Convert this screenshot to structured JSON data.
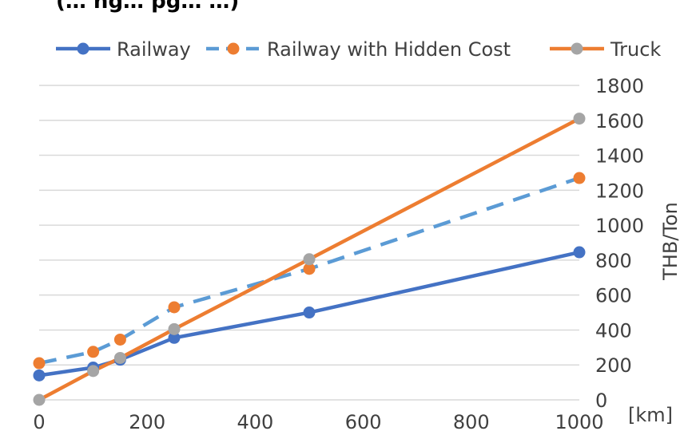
{
  "chart_data": {
    "type": "line",
    "title": "(… ng… pg… …)",
    "xlabel": "[km]",
    "ylabel": "THB/Ton",
    "xlim": [
      0,
      1000
    ],
    "ylim": [
      0,
      1800
    ],
    "xticks": [
      0,
      200,
      400,
      600,
      800,
      1000
    ],
    "yticks": [
      0,
      200,
      400,
      600,
      800,
      1000,
      1200,
      1400,
      1600,
      1800
    ],
    "grid": true,
    "legend_position": "top",
    "series": [
      {
        "name": "Railway",
        "color": "#4472c4",
        "line_style": "solid",
        "marker_color": "#4472c4",
        "x": [
          0,
          100,
          150,
          250,
          500,
          1000
        ],
        "y": [
          140,
          185,
          230,
          355,
          500,
          845
        ]
      },
      {
        "name": "Railway with Hidden Cost",
        "color": "#5b9bd5",
        "line_style": "dashed",
        "marker_color": "#ed7d31",
        "x": [
          0,
          100,
          150,
          250,
          500,
          1000
        ],
        "y": [
          210,
          275,
          345,
          530,
          750,
          1270
        ]
      },
      {
        "name": "Truck",
        "color": "#ed7d31",
        "line_style": "solid",
        "marker_color": "#a5a5a5",
        "x": [
          0,
          100,
          150,
          250,
          500,
          1000
        ],
        "y": [
          0,
          165,
          240,
          405,
          805,
          1610
        ]
      }
    ]
  }
}
